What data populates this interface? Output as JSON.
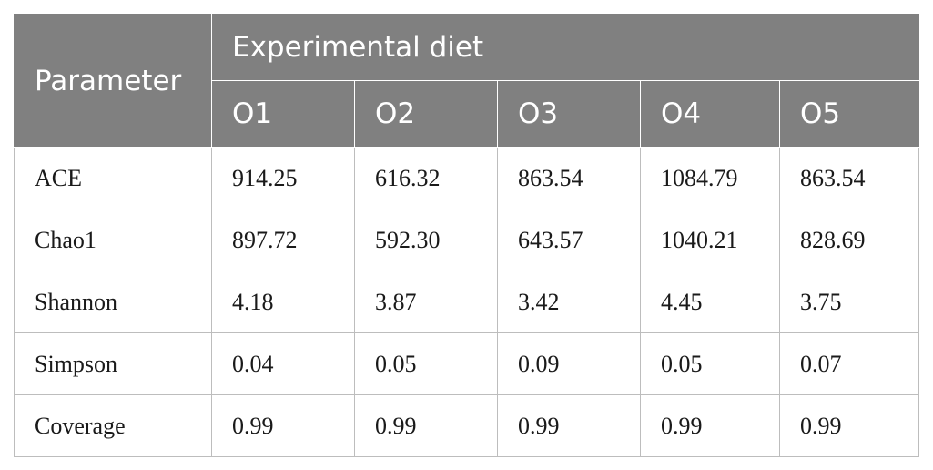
{
  "table": {
    "header": {
      "parameter": "Parameter",
      "group": "Experimental diet",
      "columns": [
        "O1",
        "O2",
        "O3",
        "O4",
        "O5"
      ]
    },
    "rows": [
      {
        "label": "ACE",
        "values": [
          "914.25",
          "616.32",
          "863.54",
          "1084.79",
          "863.54"
        ]
      },
      {
        "label": "Chao1",
        "values": [
          "897.72",
          "592.30",
          "643.57",
          "1040.21",
          "828.69"
        ]
      },
      {
        "label": "Shannon",
        "values": [
          "4.18",
          "3.87",
          "3.42",
          "4.45",
          "3.75"
        ]
      },
      {
        "label": "Simpson",
        "values": [
          "0.04",
          "0.05",
          "0.09",
          "0.05",
          "0.07"
        ]
      },
      {
        "label": "Coverage",
        "values": [
          "0.99",
          "0.99",
          "0.99",
          "0.99",
          "0.99"
        ]
      }
    ]
  },
  "colors": {
    "header_bg": "#808080",
    "header_text": "#ffffff",
    "grid": "#bdbdbd"
  }
}
